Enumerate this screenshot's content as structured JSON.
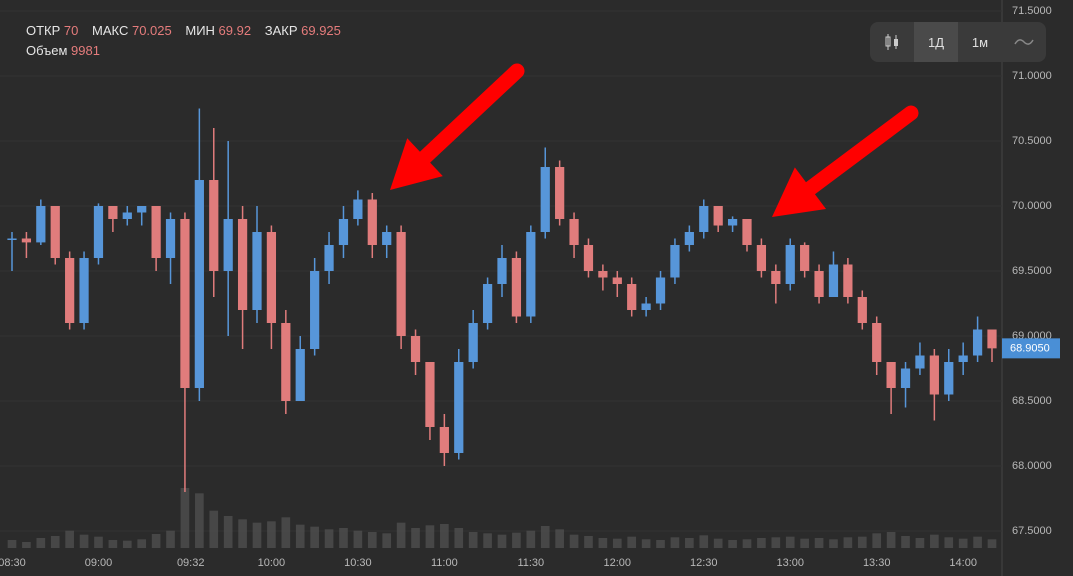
{
  "header": {
    "items": [
      {
        "label": "ОТКР",
        "value": "70"
      },
      {
        "label": "МАКС",
        "value": "70.025"
      },
      {
        "label": "МИН",
        "value": "69.92"
      },
      {
        "label": "ЗАКР",
        "value": "69.925"
      }
    ],
    "volume_label": "Объем",
    "volume": "9981"
  },
  "toolbar": {
    "buttons": [
      "1Д",
      "1м"
    ]
  },
  "chart_data": {
    "type": "candlestick",
    "x": [
      "08:30",
      "08:35",
      "08:40",
      "08:45",
      "08:50",
      "08:55",
      "09:00",
      "09:05",
      "09:10",
      "09:15",
      "09:20",
      "09:25",
      "09:30",
      "09:35",
      "09:40",
      "09:45",
      "09:50",
      "09:55",
      "10:00",
      "10:05",
      "10:10",
      "10:15",
      "10:20",
      "10:25",
      "10:30",
      "10:35",
      "10:40",
      "10:45",
      "10:50",
      "10:55",
      "11:00",
      "11:05",
      "11:10",
      "11:15",
      "11:20",
      "11:25",
      "11:30",
      "11:35",
      "11:40",
      "11:45",
      "11:50",
      "11:55",
      "12:00",
      "12:05",
      "12:10",
      "12:15",
      "12:20",
      "12:25",
      "12:30",
      "12:35",
      "12:40",
      "12:45",
      "12:50",
      "12:55",
      "13:00",
      "13:05",
      "13:10",
      "13:15",
      "13:20",
      "13:25",
      "13:30",
      "13:35",
      "13:40",
      "13:45",
      "13:50",
      "13:55",
      "14:00",
      "14:05",
      "14:10"
    ],
    "open": [
      69.75,
      69.75,
      69.72,
      70.0,
      69.6,
      69.1,
      69.6,
      70.0,
      69.9,
      69.95,
      70.0,
      69.6,
      69.9,
      68.6,
      70.2,
      69.5,
      69.9,
      69.2,
      69.8,
      69.1,
      68.5,
      68.9,
      69.5,
      69.7,
      69.9,
      70.05,
      69.7,
      69.8,
      69.0,
      68.8,
      68.3,
      68.1,
      68.8,
      69.1,
      69.4,
      69.6,
      69.15,
      69.8,
      70.3,
      69.9,
      69.7,
      69.5,
      69.45,
      69.4,
      69.2,
      69.25,
      69.45,
      69.7,
      69.8,
      70.0,
      69.85,
      69.9,
      69.7,
      69.5,
      69.4,
      69.7,
      69.5,
      69.3,
      69.55,
      69.3,
      69.1,
      68.8,
      68.6,
      68.75,
      68.85,
      68.55,
      68.8,
      68.85,
      69.05
    ],
    "high": [
      69.8,
      69.8,
      70.05,
      70.0,
      69.65,
      69.65,
      70.02,
      70.0,
      70.0,
      70.0,
      70.0,
      69.95,
      69.95,
      70.75,
      70.6,
      70.5,
      70.0,
      70.0,
      69.85,
      69.2,
      69.0,
      69.6,
      69.8,
      70.0,
      70.12,
      70.1,
      69.85,
      69.85,
      69.05,
      68.8,
      68.4,
      68.9,
      69.2,
      69.45,
      69.7,
      69.65,
      69.85,
      70.45,
      70.35,
      69.95,
      69.75,
      69.55,
      69.5,
      69.45,
      69.3,
      69.5,
      69.75,
      69.85,
      70.05,
      70.0,
      69.92,
      69.9,
      69.75,
      69.55,
      69.75,
      69.72,
      69.55,
      69.65,
      69.6,
      69.35,
      69.15,
      68.8,
      68.8,
      68.95,
      68.9,
      68.9,
      68.95,
      69.15,
      69.05
    ],
    "low": [
      69.5,
      69.6,
      69.7,
      69.55,
      69.05,
      69.05,
      69.55,
      69.8,
      69.85,
      69.85,
      69.5,
      69.4,
      67.8,
      68.5,
      69.3,
      69.0,
      68.9,
      69.1,
      68.9,
      68.4,
      68.5,
      68.85,
      69.4,
      69.6,
      69.85,
      69.6,
      69.6,
      68.9,
      68.7,
      68.2,
      68.0,
      68.05,
      68.75,
      69.05,
      69.3,
      69.1,
      69.1,
      69.75,
      69.85,
      69.6,
      69.45,
      69.35,
      69.3,
      69.15,
      69.15,
      69.2,
      69.4,
      69.65,
      69.75,
      69.8,
      69.8,
      69.65,
      69.45,
      69.25,
      69.35,
      69.45,
      69.25,
      69.3,
      69.25,
      69.05,
      68.7,
      68.4,
      68.45,
      68.7,
      68.35,
      68.5,
      68.7,
      68.8,
      68.8
    ],
    "close": [
      69.75,
      69.72,
      70.0,
      69.6,
      69.1,
      69.6,
      70.0,
      69.9,
      69.95,
      70.0,
      69.6,
      69.9,
      68.6,
      70.2,
      69.5,
      69.9,
      69.2,
      69.8,
      69.1,
      68.5,
      68.9,
      69.5,
      69.7,
      69.9,
      70.05,
      69.7,
      69.8,
      69.0,
      68.8,
      68.3,
      68.1,
      68.8,
      69.1,
      69.4,
      69.6,
      69.15,
      69.8,
      70.3,
      69.9,
      69.7,
      69.5,
      69.45,
      69.4,
      69.2,
      69.25,
      69.45,
      69.7,
      69.8,
      70.0,
      69.85,
      69.9,
      69.7,
      69.5,
      69.4,
      69.7,
      69.5,
      69.3,
      69.55,
      69.3,
      69.1,
      68.8,
      68.6,
      68.75,
      68.85,
      68.55,
      68.8,
      68.85,
      69.05,
      68.905
    ],
    "volume": [
      120,
      90,
      150,
      180,
      260,
      200,
      170,
      120,
      110,
      130,
      210,
      260,
      900,
      820,
      560,
      480,
      430,
      380,
      400,
      460,
      350,
      320,
      280,
      300,
      260,
      240,
      220,
      380,
      300,
      340,
      360,
      300,
      240,
      220,
      200,
      230,
      260,
      330,
      280,
      200,
      180,
      150,
      140,
      170,
      130,
      120,
      160,
      150,
      190,
      140,
      120,
      130,
      150,
      160,
      170,
      140,
      150,
      130,
      160,
      170,
      220,
      240,
      180,
      150,
      200,
      160,
      140,
      170,
      130
    ],
    "up_color": "#5796d9",
    "down_color": "#e07c7c",
    "ylim": [
      67.5,
      71.5
    ],
    "yticks": [
      {
        "value": 67.5,
        "label": "67.5000"
      },
      {
        "value": 68,
        "label": "68.0000"
      },
      {
        "value": 68.5,
        "label": "68.5000"
      },
      {
        "value": 69,
        "label": "69.0000"
      },
      {
        "value": 69.5,
        "label": "69.5000"
      },
      {
        "value": 70,
        "label": "70.0000"
      },
      {
        "value": 70.5,
        "label": "70.5000"
      },
      {
        "value": 71,
        "label": "71.0000"
      },
      {
        "value": 71.5,
        "label": "71.5000"
      }
    ],
    "xticks": [
      "08:30",
      "09:00",
      "09:32",
      "10:00",
      "10:30",
      "11:00",
      "11:30",
      "12:00",
      "12:30",
      "13:00",
      "13:30",
      "14:00"
    ],
    "last_price": {
      "value": 68.905,
      "label": "68.9050"
    },
    "grid": true
  }
}
